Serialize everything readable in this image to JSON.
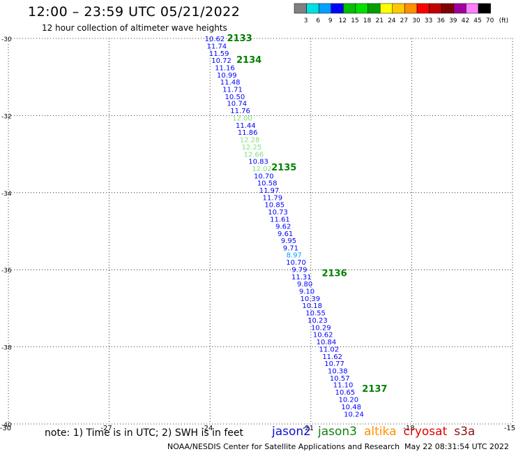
{
  "title": "12:00 – 23:59 UTC 05/21/2022",
  "subtitle": "12 hour collection of altimeter wave heights",
  "note": "note: 1) Time is in UTC; 2) SWH is in feet",
  "legend": [
    {
      "name": "jason2",
      "color": "#1010d0"
    },
    {
      "name": "jason3",
      "color": "#108010"
    },
    {
      "name": "altika",
      "color": "#ff9000"
    },
    {
      "name": "cryosat",
      "color": "#e00000"
    },
    {
      "name": "s3a",
      "color": "#8a1010"
    }
  ],
  "credit": "NOAA/NESDIS Center for Satellite Applications and Research",
  "timestamp": "May 22 08:31:54 UTC 2022",
  "color_scale": {
    "labels": [
      "3",
      "6",
      "9",
      "12",
      "15",
      "18",
      "21",
      "24",
      "27",
      "30",
      "33",
      "36",
      "39",
      "42",
      "45",
      "70"
    ],
    "unit": "(ft)",
    "colors": [
      "#808080",
      "#00e0e0",
      "#00a0ff",
      "#0000ff",
      "#00c000",
      "#00e000",
      "#00a000",
      "#ffff00",
      "#ffc800",
      "#ff9000",
      "#ff0000",
      "#c00000",
      "#800000",
      "#a000a0",
      "#ff80ff",
      "#000000"
    ]
  },
  "chart_data": {
    "type": "scatter",
    "xlabel": "",
    "ylabel": "",
    "xlim": [
      -30,
      -15
    ],
    "ylim": [
      -40,
      -30
    ],
    "x_ticks": [
      -30,
      -27,
      -24,
      -21,
      -18,
      -15
    ],
    "x_tick_labels": [
      "-30",
      "-27",
      "-24",
      "-21",
      "-18",
      "-15"
    ],
    "y_ticks": [
      -30,
      -32,
      -34,
      -36,
      -38,
      -40
    ],
    "y_tick_labels": [
      "-30",
      "-32",
      "-34",
      "-36",
      "-38",
      "-40"
    ],
    "grid": "dotted",
    "points": [
      {
        "lon": -23.86,
        "lat": -30.0,
        "value": "10.62",
        "color": "#0000ff"
      },
      {
        "lon": -23.8,
        "lat": -30.19,
        "value": "11.74",
        "color": "#0000ff"
      },
      {
        "lon": -23.73,
        "lat": -30.38,
        "value": "11.59",
        "color": "#0000ff"
      },
      {
        "lon": -23.66,
        "lat": -30.56,
        "value": "10.72",
        "color": "#0000ff"
      },
      {
        "lon": -23.56,
        "lat": -30.75,
        "value": "11.16",
        "color": "#0000ff"
      },
      {
        "lon": -23.5,
        "lat": -30.94,
        "value": "10.99",
        "color": "#0000ff"
      },
      {
        "lon": -23.4,
        "lat": -31.12,
        "value": "11.48",
        "color": "#0000ff"
      },
      {
        "lon": -23.33,
        "lat": -31.31,
        "value": "11.71",
        "color": "#0000ff"
      },
      {
        "lon": -23.26,
        "lat": -31.5,
        "value": "10.50",
        "color": "#0000ff"
      },
      {
        "lon": -23.2,
        "lat": -31.68,
        "value": "10.74",
        "color": "#0000ff"
      },
      {
        "lon": -23.1,
        "lat": -31.87,
        "value": "11.76",
        "color": "#0000ff"
      },
      {
        "lon": -23.04,
        "lat": -32.06,
        "value": "12.00",
        "color": "#80e080"
      },
      {
        "lon": -22.94,
        "lat": -32.25,
        "value": "11.44",
        "color": "#0000ff"
      },
      {
        "lon": -22.88,
        "lat": -32.43,
        "value": "11.86",
        "color": "#0000ff"
      },
      {
        "lon": -22.82,
        "lat": -32.62,
        "value": "12.28",
        "color": "#80e080"
      },
      {
        "lon": -22.76,
        "lat": -32.81,
        "value": "12.25",
        "color": "#80e080"
      },
      {
        "lon": -22.7,
        "lat": -33.0,
        "value": "12.66",
        "color": "#80e080"
      },
      {
        "lon": -22.56,
        "lat": -33.18,
        "value": "10.83",
        "color": "#0000ff"
      },
      {
        "lon": -22.46,
        "lat": -33.37,
        "value": "12.02",
        "color": "#80e080"
      },
      {
        "lon": -22.4,
        "lat": -33.56,
        "value": "10.70",
        "color": "#0000ff"
      },
      {
        "lon": -22.3,
        "lat": -33.74,
        "value": "10.58",
        "color": "#0000ff"
      },
      {
        "lon": -22.24,
        "lat": -33.93,
        "value": "11.97",
        "color": "#0000ff"
      },
      {
        "lon": -22.14,
        "lat": -34.12,
        "value": "11.79",
        "color": "#0000ff"
      },
      {
        "lon": -22.08,
        "lat": -34.3,
        "value": "10.85",
        "color": "#0000ff"
      },
      {
        "lon": -21.98,
        "lat": -34.49,
        "value": "10.73",
        "color": "#0000ff"
      },
      {
        "lon": -21.92,
        "lat": -34.68,
        "value": "11.61",
        "color": "#0000ff"
      },
      {
        "lon": -21.82,
        "lat": -34.86,
        "value": "9.62",
        "color": "#0000ff"
      },
      {
        "lon": -21.76,
        "lat": -35.05,
        "value": "9.61",
        "color": "#0000ff"
      },
      {
        "lon": -21.66,
        "lat": -35.24,
        "value": "9.95",
        "color": "#0000ff"
      },
      {
        "lon": -21.6,
        "lat": -35.43,
        "value": "9.71",
        "color": "#0000ff"
      },
      {
        "lon": -21.5,
        "lat": -35.61,
        "value": "8.97",
        "color": "#00a0ff"
      },
      {
        "lon": -21.44,
        "lat": -35.8,
        "value": "10.70",
        "color": "#0000ff"
      },
      {
        "lon": -21.34,
        "lat": -35.99,
        "value": "9.79",
        "color": "#0000ff"
      },
      {
        "lon": -21.28,
        "lat": -36.18,
        "value": "11.31",
        "color": "#0000ff"
      },
      {
        "lon": -21.18,
        "lat": -36.36,
        "value": "9.80",
        "color": "#0000ff"
      },
      {
        "lon": -21.12,
        "lat": -36.55,
        "value": "9.10",
        "color": "#0000ff"
      },
      {
        "lon": -21.02,
        "lat": -36.74,
        "value": "10.39",
        "color": "#0000ff"
      },
      {
        "lon": -20.96,
        "lat": -36.92,
        "value": "10.18",
        "color": "#0000ff"
      },
      {
        "lon": -20.86,
        "lat": -37.11,
        "value": "10.55",
        "color": "#0000ff"
      },
      {
        "lon": -20.8,
        "lat": -37.3,
        "value": "10.23",
        "color": "#0000ff"
      },
      {
        "lon": -20.7,
        "lat": -37.49,
        "value": "10.29",
        "color": "#0000ff"
      },
      {
        "lon": -20.64,
        "lat": -37.67,
        "value": "10.62",
        "color": "#0000ff"
      },
      {
        "lon": -20.54,
        "lat": -37.86,
        "value": "10.84",
        "color": "#0000ff"
      },
      {
        "lon": -20.46,
        "lat": -38.05,
        "value": "11.02",
        "color": "#0000ff"
      },
      {
        "lon": -20.36,
        "lat": -38.24,
        "value": "11.62",
        "color": "#0000ff"
      },
      {
        "lon": -20.3,
        "lat": -38.42,
        "value": "10.77",
        "color": "#0000ff"
      },
      {
        "lon": -20.2,
        "lat": -38.61,
        "value": "10.38",
        "color": "#0000ff"
      },
      {
        "lon": -20.14,
        "lat": -38.8,
        "value": "10.57",
        "color": "#0000ff"
      },
      {
        "lon": -20.04,
        "lat": -38.98,
        "value": "11.10",
        "color": "#0000ff"
      },
      {
        "lon": -19.98,
        "lat": -39.17,
        "value": "10.65",
        "color": "#0000ff"
      },
      {
        "lon": -19.88,
        "lat": -39.36,
        "value": "10.20",
        "color": "#0000ff"
      },
      {
        "lon": -19.8,
        "lat": -39.55,
        "value": "10.48",
        "color": "#0000ff"
      },
      {
        "lon": -19.72,
        "lat": -39.74,
        "value": "10.24",
        "color": "#0000ff"
      }
    ],
    "time_labels": [
      {
        "lon": -23.12,
        "lat": -29.98,
        "text": "2133",
        "color": "#008000"
      },
      {
        "lon": -22.84,
        "lat": -30.54,
        "text": "2134",
        "color": "#008000"
      },
      {
        "lon": -21.8,
        "lat": -33.33,
        "text": "2135",
        "color": "#008000"
      },
      {
        "lon": -20.3,
        "lat": -36.08,
        "text": "2136",
        "color": "#008000"
      },
      {
        "lon": -19.1,
        "lat": -39.08,
        "text": "2137",
        "color": "#008000"
      }
    ]
  }
}
